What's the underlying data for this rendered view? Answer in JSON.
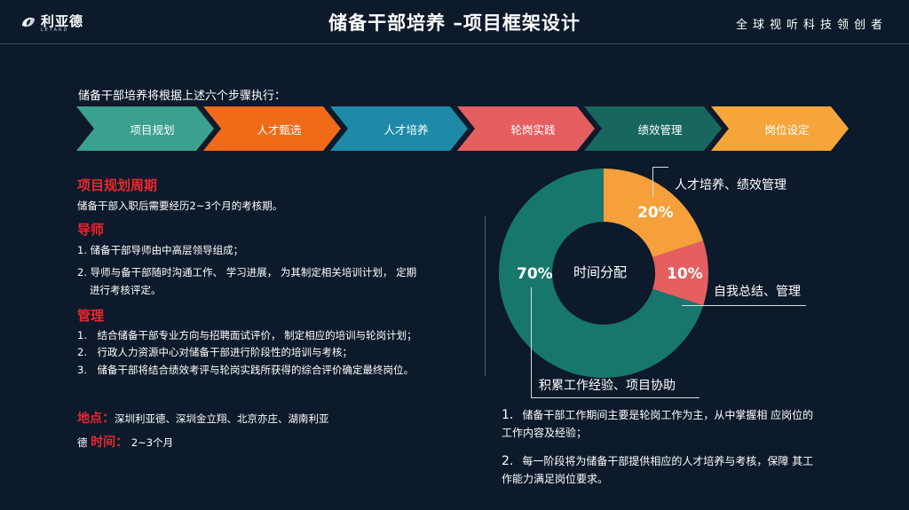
{
  "brand": {
    "logo_text": "利亚德",
    "logo_sub": "LEYARD",
    "slogan": "全球视听科技领创者"
  },
  "title": "储备干部培养 –项目框架设计",
  "intro": "储备干部培养将根据上述六个步骤执行：",
  "steps": [
    {
      "label": "项目规划",
      "color": "#3aa190"
    },
    {
      "label": "人才甄选",
      "color": "#f06a17"
    },
    {
      "label": "人才培养",
      "color": "#1f8aa8"
    },
    {
      "label": "轮岗实践",
      "color": "#e55e60"
    },
    {
      "label": "绩效管理",
      "color": "#17665f"
    },
    {
      "label": "岗位设定",
      "color": "#f5a53a"
    }
  ],
  "sections": {
    "plan_title": "项目规划周期",
    "plan_text": "储备干部入职后需要经历2~3个月的考核期。",
    "mentor_title": "导师",
    "mentor_1": "1. 储备干部导师由中高层领导组成；",
    "mentor_2a": "2. 导师与备干部随时沟通工作、 学习进展， 为其制定相关培训计划， 定期",
    "mentor_2b": "进行考核评定。",
    "manage_title": "管理",
    "manage_1": "1.　结合储备干部专业方向与招聘面试评价， 制定相应的培训与轮岗计划；",
    "manage_2": "2.　行政人力资源中心对储备干部进行阶段性的培训与考核；",
    "manage_3": "3.　储备干部将结合绩效考评与轮岗实践所获得的综合评价确定最终岗位。",
    "location_label": "地点：",
    "location_text": "深圳利亚德、深圳金立翔、北京亦庄、湖南利亚",
    "location_tail": "德",
    "time_label": "时间：",
    "time_text": "2~3个月"
  },
  "donut": {
    "center_label": "时间分配",
    "slices": [
      {
        "label": "人才培养、绩效管理",
        "pct_text": "20%",
        "value": 20,
        "color": "#f5a03a"
      },
      {
        "label": "自我总结、管理",
        "pct_text": "10%",
        "value": 10,
        "color": "#e55e60"
      },
      {
        "label": "积累工作经验、项目协助",
        "pct_text": "70%",
        "value": 70,
        "color": "#17776c"
      }
    ]
  },
  "notes": {
    "n1_num": "1.",
    "n1_text": "储备干部工作期间主要是轮岗工作为主，从中掌握相 应岗位的工作内容及经验；",
    "n2_num": "2.",
    "n2_text": "每一阶段将为储备干部提供相应的人才培养与考核，保障 其工作能力满足岗位要求。"
  }
}
